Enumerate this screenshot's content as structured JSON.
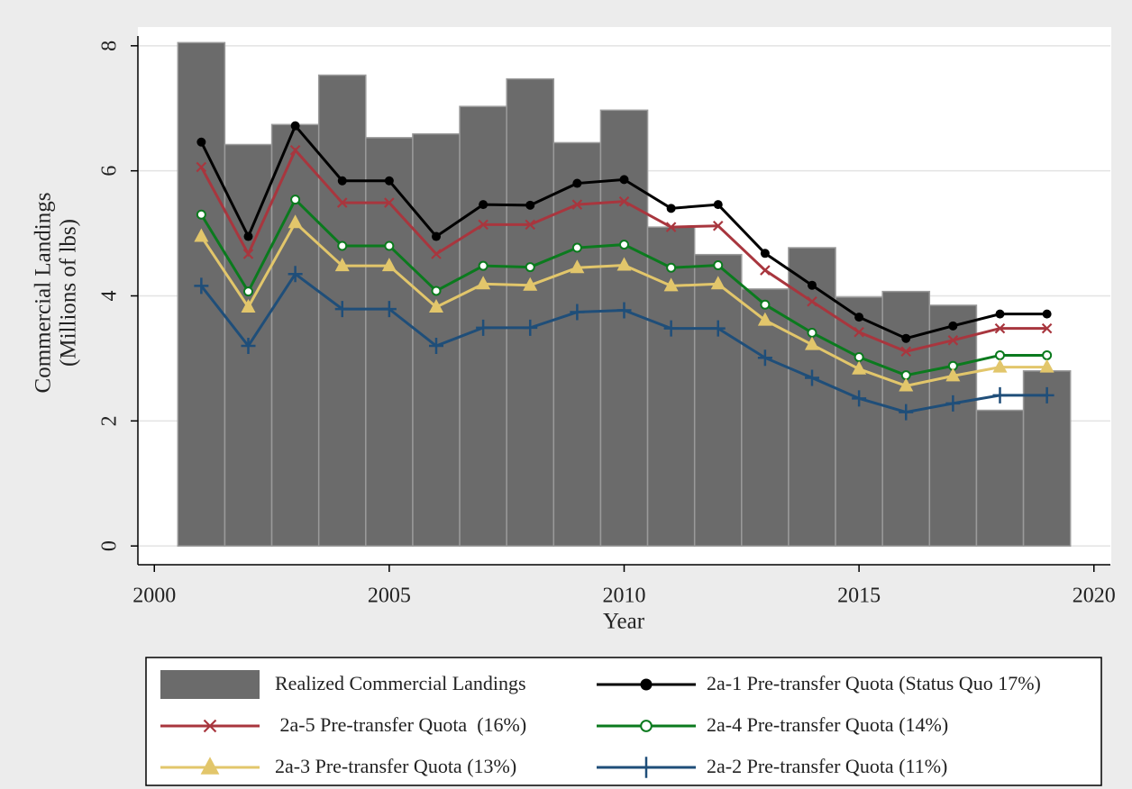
{
  "chart_data": {
    "type": "combo",
    "xlabel": "Year",
    "ylabel": [
      "Commercial Landings",
      "(Millions of lbs)"
    ],
    "x": [
      2001,
      2002,
      2003,
      2004,
      2005,
      2006,
      2007,
      2008,
      2009,
      2010,
      2011,
      2012,
      2013,
      2014,
      2015,
      2016,
      2017,
      2018,
      2019
    ],
    "xlim": [
      1999.65,
      2020.35
    ],
    "xticks": [
      2000,
      2005,
      2010,
      2015,
      2020
    ],
    "ylim": [
      -0.3,
      8.3
    ],
    "yticks": [
      0,
      2,
      4,
      6,
      8
    ],
    "grid": true,
    "series": [
      {
        "name": "Realized Commercial Landings",
        "type": "bar",
        "color": "#6b6b6b",
        "values": [
          8.05,
          6.42,
          6.74,
          7.53,
          6.53,
          6.59,
          7.03,
          7.47,
          6.45,
          6.97,
          5.1,
          4.66,
          4.11,
          4.77,
          3.98,
          4.07,
          3.85,
          2.17,
          2.8
        ]
      },
      {
        "name": "2a-1 Pre-transfer Quota (Status Quo 17%)",
        "type": "line",
        "marker": "dot",
        "color": "#000000",
        "values": [
          6.46,
          4.95,
          6.72,
          5.84,
          5.84,
          4.95,
          5.46,
          5.45,
          5.8,
          5.86,
          5.4,
          5.46,
          4.68,
          4.17,
          3.66,
          3.32,
          3.52,
          3.71,
          3.71
        ]
      },
      {
        "name": " 2a-5 Pre-transfer Quota  (16%)",
        "type": "line",
        "marker": "x",
        "color": "#a8363e",
        "values": [
          6.06,
          4.67,
          6.33,
          5.49,
          5.49,
          4.67,
          5.14,
          5.14,
          5.46,
          5.51,
          5.1,
          5.12,
          4.41,
          3.91,
          3.42,
          3.11,
          3.29,
          3.48,
          3.48
        ]
      },
      {
        "name": "2a-4 Pre-transfer Quota (14%)",
        "type": "line",
        "marker": "ring",
        "color": "#0b7a1e",
        "values": [
          5.3,
          4.07,
          5.54,
          4.8,
          4.8,
          4.08,
          4.48,
          4.46,
          4.77,
          4.82,
          4.45,
          4.49,
          3.86,
          3.41,
          3.02,
          2.73,
          2.88,
          3.05,
          3.05
        ]
      },
      {
        "name": "2a-3 Pre-transfer Quota (13%)",
        "type": "line",
        "marker": "triangle",
        "color": "#e2c66b",
        "values": [
          4.95,
          3.82,
          5.17,
          4.48,
          4.48,
          3.82,
          4.19,
          4.17,
          4.45,
          4.49,
          4.16,
          4.19,
          3.61,
          3.22,
          2.83,
          2.56,
          2.72,
          2.86,
          2.86
        ]
      },
      {
        "name": "2a-2 Pre-transfer Quota (11%)",
        "type": "line",
        "marker": "plus",
        "color": "#1f4e79",
        "values": [
          4.16,
          3.2,
          4.35,
          3.79,
          3.79,
          3.2,
          3.49,
          3.49,
          3.74,
          3.77,
          3.48,
          3.48,
          3.01,
          2.69,
          2.36,
          2.14,
          2.28,
          2.41,
          2.41
        ]
      }
    ]
  }
}
